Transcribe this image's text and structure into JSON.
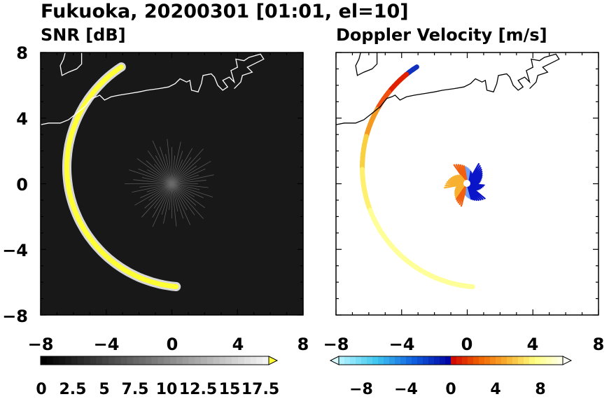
{
  "figure": {
    "title": "Fukuoka, 20200301 [01:01, el=10]"
  },
  "chart_data": [
    {
      "type": "heatmap",
      "title": "SNR [dB]",
      "xlim": [
        -8,
        8
      ],
      "ylim": [
        -8,
        8
      ],
      "xticks": [
        "−8",
        "−4",
        "0",
        "4",
        "8"
      ],
      "yticks": [
        "8",
        "4",
        "0",
        "−4",
        "−8"
      ],
      "xtick_values": [
        -8,
        -4,
        0,
        4,
        8
      ],
      "ytick_values": [
        8,
        4,
        0,
        -4,
        -8
      ],
      "background_color": "#181818",
      "echo_color": "#ffff33",
      "colorbar": {
        "orientation": "horizontal",
        "extend": "max",
        "range": [
          0,
          18.5
        ],
        "tick_labels": [
          "0",
          "2.5",
          "5",
          "7.5",
          "10",
          "12.5",
          "15",
          "17.5"
        ],
        "tick_values": [
          0,
          2.5,
          5,
          7.5,
          10,
          12.5,
          15,
          17.5
        ],
        "colors": [
          "#000000",
          "#ffffff"
        ],
        "extend_color": "#ffff33"
      }
    },
    {
      "type": "heatmap",
      "title": "Doppler Velocity [m/s]",
      "xlim": [
        -8,
        8
      ],
      "ylim": [
        -8,
        8
      ],
      "xticks": [
        "−8",
        "−4",
        "0",
        "4",
        "8"
      ],
      "yticks": [
        "8",
        "4",
        "0",
        "−4",
        "−8"
      ],
      "xtick_values": [
        -8,
        -4,
        0,
        4,
        8
      ],
      "ytick_values": [
        8,
        4,
        0,
        -4,
        -8
      ],
      "background_color": "#ffffff",
      "colorbar": {
        "orientation": "horizontal",
        "extend": "both",
        "range": [
          -10,
          10
        ],
        "tick_labels": [
          "−8",
          "−4",
          "0",
          "4",
          "8"
        ],
        "tick_values": [
          -8,
          -4,
          0,
          4,
          8
        ],
        "colors": [
          "#b8f4ff",
          "#40c8f0",
          "#1060e0",
          "#0000a0",
          "#d00000",
          "#f06000",
          "#f8b030",
          "#ffff80",
          "#fffff0"
        ]
      }
    }
  ]
}
